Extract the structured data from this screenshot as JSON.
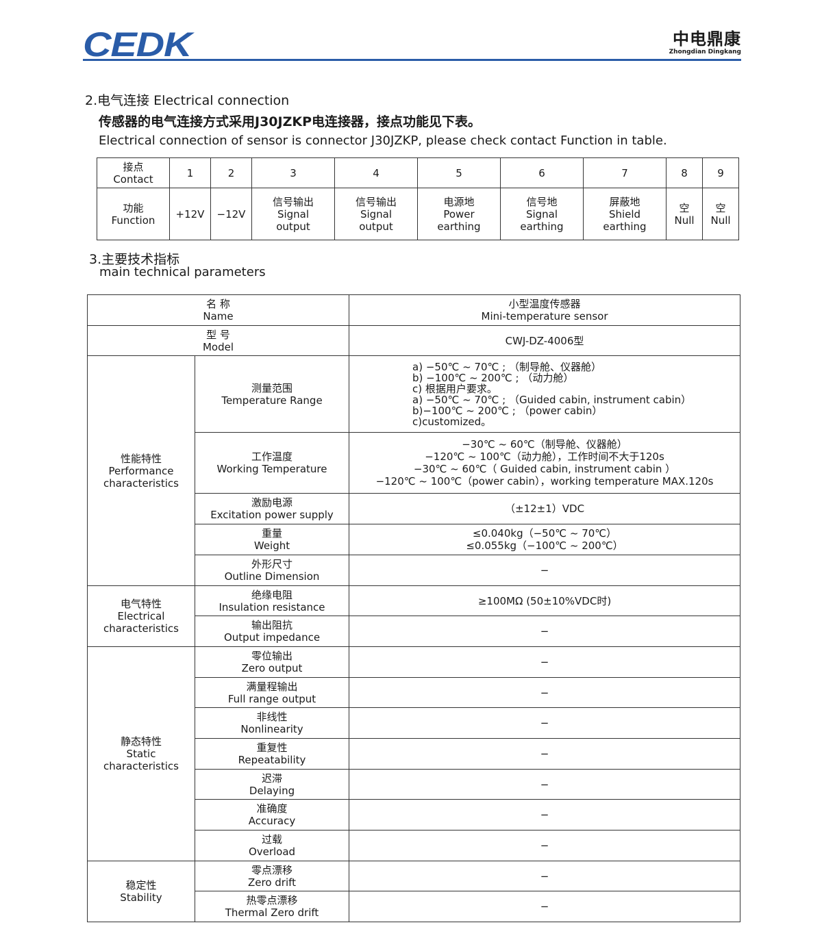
{
  "header": {
    "logo": "CEDK",
    "brand_cn": "中电鼎康",
    "brand_en": "Zhongdian Dingkang",
    "accent": "#2a5ca8"
  },
  "section2": {
    "title": "2.电气连接  Electrical connection",
    "desc_cn": "传感器的电气连接方式采用J30JZKP电连接器，接点功能见下表。",
    "desc_en": "Electrical connection of sensor is connector J30JZKP, please check contact Function in table."
  },
  "contacts": {
    "row_header": "接点\nContact",
    "func_header": "功能\nFunction",
    "items": [
      {
        "no": "1",
        "func": "+12V"
      },
      {
        "no": "2",
        "func": "−12V"
      },
      {
        "no": "3",
        "func": "信号输出\nSignal\noutput"
      },
      {
        "no": "4",
        "func": "信号输出\nSignal\noutput"
      },
      {
        "no": "5",
        "func": "电源地\nPower\nearthing"
      },
      {
        "no": "6",
        "func": "信号地\nSignal\nearthing"
      },
      {
        "no": "7",
        "func": "屏蔽地\nShield\nearthing"
      },
      {
        "no": "8",
        "func": "空\nNull"
      },
      {
        "no": "9",
        "func": "空\nNull"
      }
    ]
  },
  "section3": {
    "title_cn": "3.主要技术指标",
    "title_en": "main technical parameters"
  },
  "params": {
    "name": {
      "label": "名 称\nName",
      "value": "小型温度传感器\nMini-temperature sensor"
    },
    "model": {
      "label": "型 号\nModel",
      "value": "CWJ-DZ-4006型"
    },
    "groups": {
      "performance": "性能特性\nPerformance\ncharacteristics",
      "electrical": "电气特性\nElectrical\ncharacteristics",
      "static": "静态特性\nStatic\ncharacteristics",
      "stability": "稳定性\nStability"
    },
    "rows": [
      {
        "label": "测量范围\nTemperature Range",
        "value": "a) −50℃ ~ 70℃ ; （制导舱、仪器舱）\nb) −100℃ ~ 200℃ ; （动力舱）\nc) 根据用户要求。\na) −50℃ ~ 70℃ ; （Guided cabin, instrument cabin）\nb)−100℃ ~ 200℃ ; （power cabin）\nc)customized。"
      },
      {
        "label": "工作温度\nWorking Temperature",
        "value": "−30℃ ~ 60℃（制导舱、仪器舱）\n−120℃ ~ 100℃（动力舱），工作时间不大于120s\n−30℃ ~ 60℃（ Guided cabin, instrument cabin ）\n−120℃ ~ 100℃（power cabin），working temperature MAX.120s"
      },
      {
        "label": "激励电源\nExcitation power supply",
        "value": "（±12±1）VDC"
      },
      {
        "label": "重量\nWeight",
        "value": "≤0.040kg（−50℃ ~ 70℃）\n≤0.055kg（−100℃ ~ 200℃）"
      },
      {
        "label": "外形尺寸\nOutline Dimension",
        "value": "−"
      },
      {
        "label": "绝缘电阻\nInsulation resistance",
        "value": "≥100MΩ (50±10%VDC时)"
      },
      {
        "label": "输出阻抗\nOutput impedance",
        "value": "−"
      },
      {
        "label": "零位输出\nZero output",
        "value": "−"
      },
      {
        "label": "满量程输出\nFull range output",
        "value": "−"
      },
      {
        "label": "非线性\nNonlinearity",
        "value": "−"
      },
      {
        "label": "重复性\nRepeatability",
        "value": "−"
      },
      {
        "label": "迟滞\nDelaying",
        "value": "−"
      },
      {
        "label": "准确度\nAccuracy",
        "value": "−"
      },
      {
        "label": "过载\nOverload",
        "value": "−"
      },
      {
        "label": "零点漂移\nZero drift",
        "value": "−"
      },
      {
        "label": "热零点漂移\nThermal Zero drift",
        "value": "−"
      }
    ]
  }
}
